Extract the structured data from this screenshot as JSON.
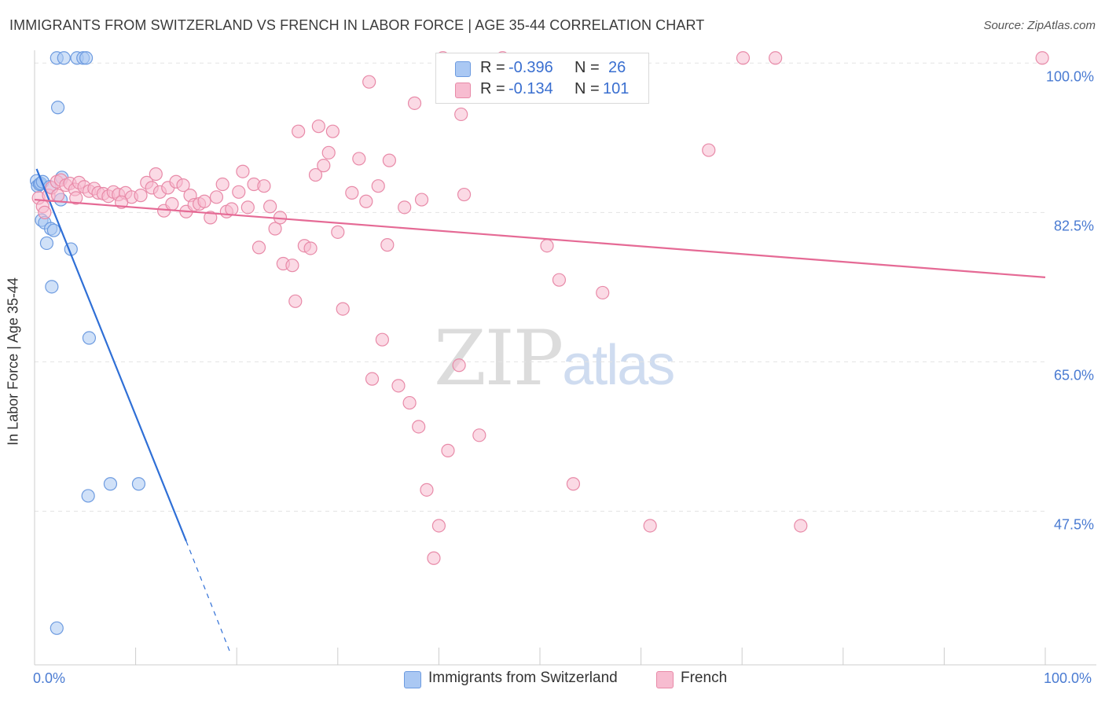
{
  "title": "IMMIGRANTS FROM SWITZERLAND VS FRENCH IN LABOR FORCE | AGE 35-44 CORRELATION CHART",
  "source": "Source: ZipAtlas.com",
  "watermark": {
    "zip": "ZIP",
    "atlas": "atlas"
  },
  "stats": [
    {
      "label_r": "R =",
      "r": "-0.396",
      "label_n": "N =",
      "n": "26",
      "color": "#aac8f3",
      "border": "#6d9be0"
    },
    {
      "label_r": "R =",
      "r": "-0.134",
      "label_n": "N =",
      "n": "101",
      "color": "#f7bcd0",
      "border": "#e88aa8"
    }
  ],
  "legend": [
    {
      "label": "Immigrants from Switzerland",
      "color": "#aac8f3",
      "border": "#6d9be0"
    },
    {
      "label": "French",
      "color": "#f7bcd0",
      "border": "#e88aa8"
    }
  ],
  "axes": {
    "x_min_label": "0.0%",
    "x_max_label": "100.0%",
    "ylabel": "In Labor Force | Age 35-44",
    "ytick_labels": [
      "100.0%",
      "82.5%",
      "65.0%",
      "47.5%"
    ]
  },
  "chart_data": {
    "type": "scatter",
    "title": "IMMIGRANTS FROM SWITZERLAND VS FRENCH IN LABOR FORCE | AGE 35-44 CORRELATION CHART",
    "xlabel": "",
    "ylabel": "In Labor Force | Age 35-44",
    "xlim": [
      0,
      100
    ],
    "ylim": [
      29.5,
      101.5
    ],
    "yticks": [
      47.5,
      65.0,
      82.5,
      100.0
    ],
    "grid": true,
    "series": [
      {
        "name": "Immigrants from Switzerland",
        "color": "#6d9be0",
        "fill": "#aac8f3",
        "trend": {
          "x": [
            0.2,
            15.0
          ],
          "y": [
            87.6,
            44.0
          ],
          "dashed_to": [
            19.4,
            30.8
          ]
        },
        "points": [
          [
            0.2,
            86.2
          ],
          [
            0.3,
            85.6
          ],
          [
            0.5,
            85.8
          ],
          [
            0.6,
            85.9
          ],
          [
            0.8,
            86.1
          ],
          [
            1.5,
            85.5
          ],
          [
            0.7,
            81.6
          ],
          [
            1.0,
            81.3
          ],
          [
            1.6,
            80.6
          ],
          [
            1.9,
            80.4
          ],
          [
            2.6,
            84.0
          ],
          [
            2.7,
            86.6
          ],
          [
            1.2,
            78.9
          ],
          [
            3.6,
            78.2
          ],
          [
            1.7,
            73.8
          ],
          [
            5.4,
            67.8
          ],
          [
            2.3,
            94.8
          ],
          [
            2.2,
            100.6
          ],
          [
            2.9,
            100.6
          ],
          [
            4.2,
            100.6
          ],
          [
            4.8,
            100.6
          ],
          [
            5.1,
            100.6
          ],
          [
            7.5,
            50.7
          ],
          [
            10.3,
            50.7
          ],
          [
            5.3,
            49.3
          ],
          [
            2.2,
            33.8
          ]
        ]
      },
      {
        "name": "French",
        "color": "#e88aa8",
        "fill": "#f7bcd0",
        "trend": {
          "x": [
            0.0,
            100.0
          ],
          "y": [
            84.0,
            74.9
          ]
        },
        "points": [
          [
            0.4,
            84.2
          ],
          [
            0.8,
            83.2
          ],
          [
            1.4,
            84.5
          ],
          [
            1.7,
            85.4
          ],
          [
            2.2,
            86.1
          ],
          [
            2.6,
            86.3
          ],
          [
            3.1,
            85.7
          ],
          [
            3.5,
            85.9
          ],
          [
            4.0,
            85.2
          ],
          [
            4.4,
            86.0
          ],
          [
            4.9,
            85.5
          ],
          [
            5.4,
            85.0
          ],
          [
            5.9,
            85.3
          ],
          [
            6.3,
            84.8
          ],
          [
            6.8,
            84.7
          ],
          [
            7.3,
            84.4
          ],
          [
            7.8,
            84.9
          ],
          [
            8.3,
            84.6
          ],
          [
            9.0,
            84.8
          ],
          [
            9.6,
            84.3
          ],
          [
            10.5,
            84.5
          ],
          [
            11.1,
            86.0
          ],
          [
            11.6,
            85.4
          ],
          [
            12.0,
            87.0
          ],
          [
            12.4,
            84.9
          ],
          [
            12.8,
            82.7
          ],
          [
            13.2,
            85.4
          ],
          [
            14.0,
            86.1
          ],
          [
            14.7,
            85.7
          ],
          [
            15.0,
            82.6
          ],
          [
            15.4,
            84.5
          ],
          [
            15.8,
            83.4
          ],
          [
            16.3,
            83.5
          ],
          [
            16.8,
            83.8
          ],
          [
            17.4,
            81.9
          ],
          [
            18.0,
            84.3
          ],
          [
            18.6,
            85.8
          ],
          [
            19.0,
            82.6
          ],
          [
            19.5,
            82.9
          ],
          [
            20.2,
            84.9
          ],
          [
            20.6,
            87.3
          ],
          [
            21.1,
            83.1
          ],
          [
            21.7,
            85.8
          ],
          [
            22.2,
            78.4
          ],
          [
            22.7,
            85.6
          ],
          [
            23.3,
            83.2
          ],
          [
            23.8,
            80.6
          ],
          [
            24.3,
            81.9
          ],
          [
            24.6,
            76.5
          ],
          [
            25.5,
            76.3
          ],
          [
            25.8,
            72.1
          ],
          [
            26.1,
            92.0
          ],
          [
            26.7,
            78.6
          ],
          [
            27.3,
            78.3
          ],
          [
            27.8,
            86.9
          ],
          [
            28.1,
            92.6
          ],
          [
            28.6,
            88.0
          ],
          [
            29.1,
            89.5
          ],
          [
            29.5,
            92.0
          ],
          [
            30.0,
            80.2
          ],
          [
            30.5,
            71.2
          ],
          [
            31.4,
            84.8
          ],
          [
            32.1,
            88.8
          ],
          [
            32.8,
            83.8
          ],
          [
            33.1,
            97.8
          ],
          [
            33.4,
            63.0
          ],
          [
            34.0,
            85.6
          ],
          [
            34.4,
            67.6
          ],
          [
            34.9,
            78.7
          ],
          [
            35.1,
            88.6
          ],
          [
            36.0,
            62.2
          ],
          [
            36.6,
            83.1
          ],
          [
            37.1,
            60.2
          ],
          [
            37.6,
            95.3
          ],
          [
            38.0,
            57.4
          ],
          [
            38.3,
            84.0
          ],
          [
            38.8,
            50.0
          ],
          [
            40.0,
            45.8
          ],
          [
            39.5,
            42.0
          ],
          [
            40.4,
            100.6
          ],
          [
            40.9,
            54.6
          ],
          [
            42.0,
            64.6
          ],
          [
            42.2,
            94.0
          ],
          [
            42.5,
            84.6
          ],
          [
            44.0,
            56.4
          ],
          [
            46.3,
            100.6
          ],
          [
            50.7,
            78.6
          ],
          [
            51.9,
            74.6
          ],
          [
            53.3,
            50.7
          ],
          [
            56.2,
            73.1
          ],
          [
            60.9,
            45.8
          ],
          [
            66.7,
            89.8
          ],
          [
            70.1,
            100.6
          ],
          [
            73.3,
            100.6
          ],
          [
            75.8,
            45.8
          ],
          [
            99.7,
            100.6
          ],
          [
            1.0,
            82.5
          ],
          [
            2.3,
            84.5
          ],
          [
            4.1,
            84.2
          ],
          [
            8.6,
            83.7
          ],
          [
            13.6,
            83.5
          ]
        ]
      }
    ]
  }
}
